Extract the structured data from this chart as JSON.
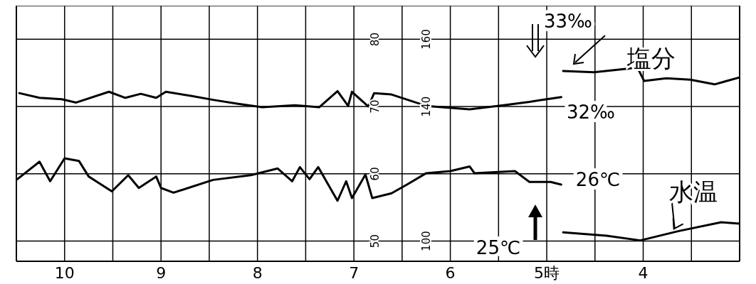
{
  "chart_data": {
    "type": "line",
    "xlim": [
      10.5,
      3
    ],
    "xticks": [
      {
        "value": 10,
        "label": "10"
      },
      {
        "value": 9.5,
        "label": null
      },
      {
        "value": 9,
        "label": "9"
      },
      {
        "value": 8.5,
        "label": null
      },
      {
        "value": 8,
        "label": "8"
      },
      {
        "value": 7.5,
        "label": null
      },
      {
        "value": 7,
        "label": "7"
      },
      {
        "value": 6.5,
        "label": null
      },
      {
        "value": 6,
        "label": "6"
      },
      {
        "value": 5.5,
        "label": null
      },
      {
        "value": 5,
        "label": "5時"
      },
      {
        "value": 4.5,
        "label": null
      },
      {
        "value": 4,
        "label": "4"
      },
      {
        "value": 3.5,
        "label": null
      }
    ],
    "ylim": [
      47,
      85
    ],
    "yticks": [
      50,
      60,
      70,
      80
    ],
    "y2lim": [
      94,
      170
    ],
    "y2ticks": [
      100,
      140,
      160
    ],
    "grid": true,
    "line_style": "solid",
    "marker": "none",
    "series": [
      {
        "name": "塩分",
        "color": "#000000",
        "x": [
          10.47,
          10.26,
          10.03,
          9.88,
          9.54,
          9.37,
          9.21,
          9.05,
          8.95,
          8.69,
          8.46,
          8.2,
          7.95,
          7.61,
          7.36,
          7.17,
          7.06,
          7.02,
          6.85,
          6.79,
          6.61,
          6.25,
          5.8,
          5.45,
          5.18,
          5.0,
          4.85,
          4.84,
          4.83,
          4.51,
          4.06,
          3.99,
          3.76,
          3.51,
          3.26,
          3.01
        ],
        "values": [
          72.0,
          71.3,
          71.1,
          70.6,
          72.2,
          71.3,
          71.9,
          71.3,
          72.2,
          71.6,
          71.0,
          70.4,
          69.9,
          70.2,
          69.9,
          72.3,
          70.1,
          72.2,
          70.0,
          72.0,
          71.8,
          70.1,
          69.6,
          70.2,
          70.7,
          71.1,
          71.4,
          null,
          75.3,
          75.1,
          75.8,
          73.8,
          74.2,
          74.0,
          73.3,
          74.3
        ]
      },
      {
        "name": "水温",
        "color": "#000000",
        "x": [
          10.49,
          10.26,
          10.15,
          10.0,
          9.85,
          9.75,
          9.51,
          9.34,
          9.23,
          9.05,
          9.0,
          8.87,
          8.46,
          8.07,
          7.79,
          7.64,
          7.56,
          7.46,
          7.37,
          7.17,
          7.08,
          7.02,
          6.88,
          6.81,
          6.61,
          6.45,
          6.25,
          6.0,
          5.8,
          5.75,
          5.33,
          5.18,
          4.96,
          4.85,
          4.84,
          4.83,
          4.38,
          4.03,
          3.63,
          3.19,
          3.0
        ],
        "values": [
          59.2,
          61.8,
          58.9,
          62.3,
          61.9,
          59.6,
          57.4,
          59.8,
          57.9,
          59.6,
          57.9,
          57.2,
          59.1,
          59.8,
          60.8,
          58.9,
          61.0,
          59.2,
          61.0,
          56.0,
          58.9,
          56.4,
          59.9,
          56.4,
          57.1,
          58.4,
          60.1,
          60.4,
          61.1,
          60.1,
          60.4,
          58.8,
          58.8,
          58.4,
          null,
          51.3,
          50.8,
          50.1,
          51.5,
          52.8,
          52.6
        ]
      }
    ],
    "annotations": [
      "33‰",
      "32‰",
      "26℃",
      "25℃"
    ]
  }
}
